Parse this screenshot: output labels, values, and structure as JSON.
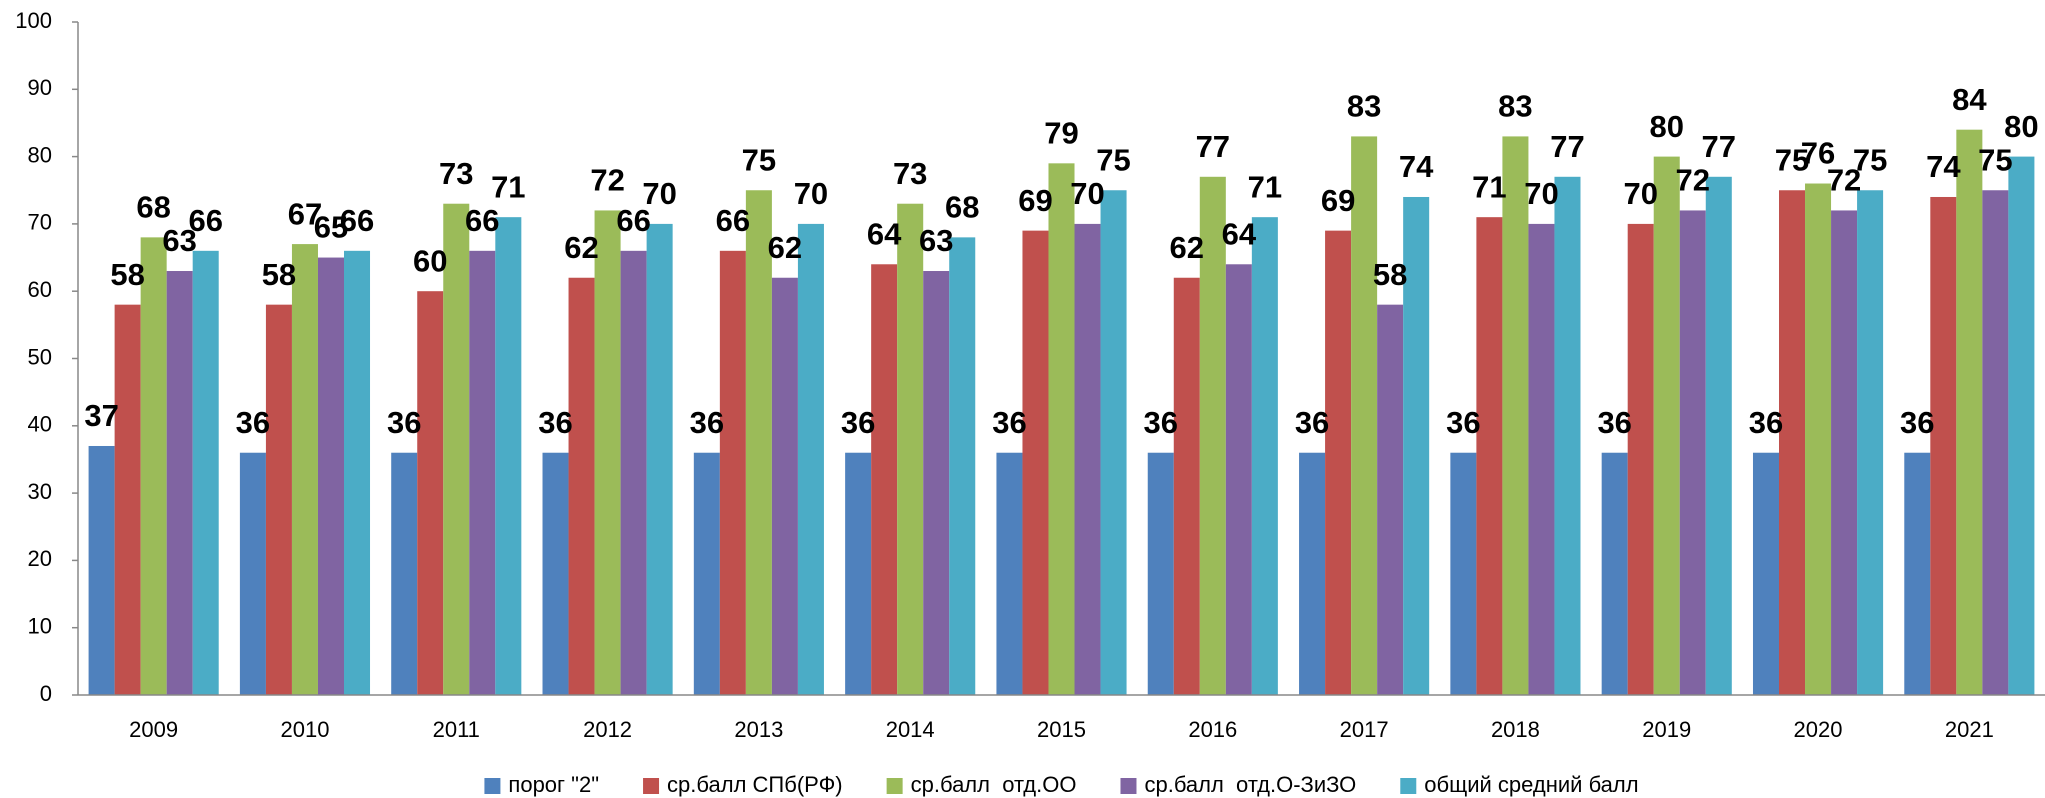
{
  "chart_data": {
    "type": "bar",
    "categories": [
      "2009",
      "2010",
      "2011",
      "2012",
      "2013",
      "2014",
      "2015",
      "2016",
      "2017",
      "2018",
      "2019",
      "2020",
      "2021"
    ],
    "series": [
      {
        "name": "порог \"2\"",
        "color": "#4f81bd",
        "values": [
          37,
          36,
          36,
          36,
          36,
          36,
          36,
          36,
          36,
          36,
          36,
          36,
          36
        ]
      },
      {
        "name": "ср.балл СПб(РФ)",
        "color": "#c0504d",
        "values": [
          58,
          58,
          60,
          62,
          66,
          64,
          69,
          62,
          69,
          71,
          70,
          75,
          74
        ]
      },
      {
        "name": "ср.балл  отд.ОО",
        "color": "#9bbb59",
        "values": [
          68,
          67,
          73,
          72,
          75,
          73,
          79,
          77,
          83,
          83,
          80,
          76,
          84
        ]
      },
      {
        "name": "ср.балл  отд.О-ЗиЗО",
        "color": "#8064a2",
        "values": [
          63,
          65,
          66,
          66,
          62,
          63,
          70,
          64,
          58,
          70,
          72,
          72,
          75
        ]
      },
      {
        "name": "общий средний балл",
        "color": "#4bacc6",
        "values": [
          66,
          66,
          71,
          70,
          70,
          68,
          75,
          71,
          74,
          77,
          77,
          75,
          80
        ]
      }
    ],
    "ylim": [
      0,
      100
    ],
    "yticks": [
      0,
      10,
      20,
      30,
      40,
      50,
      60,
      70,
      80,
      90,
      100
    ],
    "grid": false,
    "legend": "bottom"
  }
}
